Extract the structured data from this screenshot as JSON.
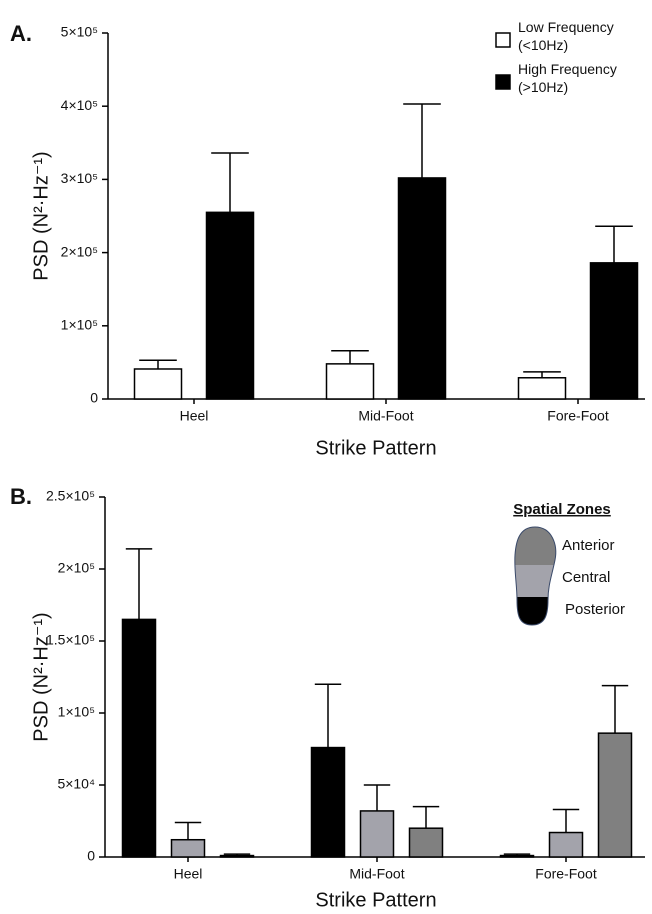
{
  "chart_data": [
    {
      "type": "bar",
      "label": "A.",
      "xlabel": "Strike Pattern",
      "ylabel": "PSD  (N²·Hz⁻¹)",
      "categories": [
        "Heel",
        "Mid-Foot",
        "Fore-Foot"
      ],
      "series": [
        {
          "name": "Low Frequency (<10Hz)",
          "color": "#ffffff",
          "values": [
            41000,
            48000,
            29000
          ],
          "errors": [
            12000,
            18000,
            8000
          ]
        },
        {
          "name": "High Frequency (>10Hz)",
          "color": "#000000",
          "values": [
            255000,
            302000,
            186000
          ],
          "errors": [
            81000,
            101000,
            50000
          ]
        }
      ],
      "ylim": [
        0,
        500000
      ],
      "yticks": [
        0,
        {
          "value": 100000,
          "label": "1×10⁵"
        },
        {
          "value": 200000,
          "label": "2×10⁵"
        },
        {
          "value": 300000,
          "label": "3×10⁵"
        },
        {
          "value": 400000,
          "label": "4×10⁵"
        },
        {
          "value": 500000,
          "label": "5×10⁵"
        }
      ],
      "legend": "upper right"
    },
    {
      "type": "bar",
      "label": "B.",
      "xlabel": "Strike Pattern",
      "ylabel": "PSD  (N²·Hz⁻¹)",
      "categories": [
        "Heel",
        "Mid-Foot",
        "Fore-Foot"
      ],
      "legend_title": "Spatial Zones",
      "series": [
        {
          "name": "Posterior",
          "color": "#000000",
          "values": [
            165000,
            76000,
            1000
          ],
          "errors": [
            49000,
            44000,
            1000
          ]
        },
        {
          "name": "Central",
          "color": "#a3a3ab",
          "values": [
            12000,
            32000,
            17000
          ],
          "errors": [
            12000,
            18000,
            16000
          ]
        },
        {
          "name": "Anterior",
          "color": "#808080",
          "values": [
            1000,
            20000,
            86000
          ],
          "errors": [
            1000,
            15000,
            33000
          ]
        }
      ],
      "ylim": [
        0,
        250000
      ],
      "yticks": [
        0,
        {
          "value": 50000,
          "label": "5×10⁴"
        },
        {
          "value": 100000,
          "label": "1×10⁵"
        },
        {
          "value": 150000,
          "label": "1.5×10⁵"
        },
        {
          "value": 200000,
          "label": "2×10⁵"
        },
        {
          "value": 250000,
          "label": "2.5×10⁵"
        }
      ],
      "legend": "upper right"
    }
  ]
}
